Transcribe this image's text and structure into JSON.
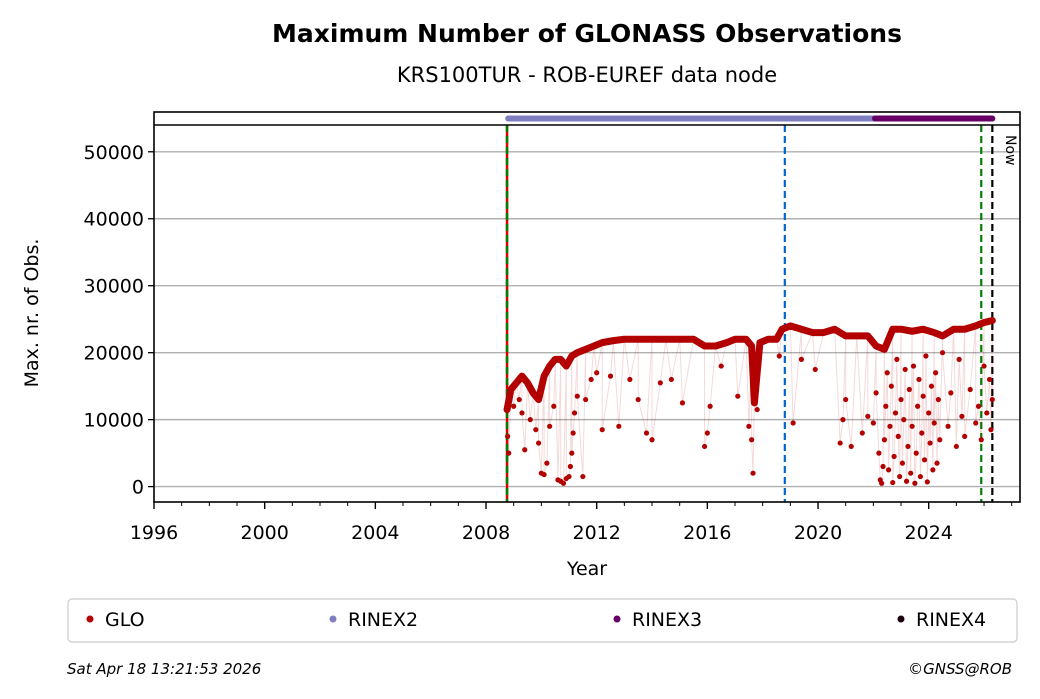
{
  "chart_data": {
    "type": "scatter",
    "title": "Maximum Number of GLONASS Observations",
    "subtitle": "KRS100TUR - ROB-EUREF data node",
    "xlabel": "Year",
    "ylabel": "Max. nr. of Obs.",
    "xlim": [
      1996,
      2027.3
    ],
    "ylim": [
      -2300,
      54000
    ],
    "xticks": [
      1996,
      2000,
      2004,
      2008,
      2012,
      2016,
      2020,
      2024
    ],
    "xtick_labels": [
      "1996",
      "2000",
      "2004",
      "2008",
      "2012",
      "2016",
      "2020",
      "2024"
    ],
    "yticks": [
      0,
      10000,
      20000,
      30000,
      40000,
      50000
    ],
    "ytick_labels": [
      "0",
      "10000",
      "20000",
      "30000",
      "40000",
      "50000"
    ],
    "grid": "horizontal",
    "now_label": "Now",
    "vertical_lines": [
      {
        "x": 2008.76,
        "color": "#008000",
        "style": "dashed-red"
      },
      {
        "x": 2018.8,
        "color": "#0066cc",
        "style": "dashed"
      },
      {
        "x": 2025.9,
        "color": "#008000",
        "style": "dashed"
      },
      {
        "x": 2026.3,
        "color": "#000000",
        "style": "dashed",
        "label": "Now"
      }
    ],
    "format_bars": [
      {
        "name": "RINEX2",
        "from": 2008.8,
        "to": 2022.06,
        "color": "#7f7fbf"
      },
      {
        "name": "RINEX3",
        "from": 2022.06,
        "to": 2026.3,
        "color": "#660066"
      }
    ],
    "series": [
      {
        "name": "GLO",
        "color": "#b30000",
        "baseline": [
          [
            2008.76,
            11500
          ],
          [
            2008.9,
            14500
          ],
          [
            2009.1,
            15500
          ],
          [
            2009.3,
            16500
          ],
          [
            2009.5,
            15500
          ],
          [
            2009.7,
            14000
          ],
          [
            2009.9,
            13000
          ],
          [
            2010.1,
            16500
          ],
          [
            2010.3,
            18000
          ],
          [
            2010.5,
            19000
          ],
          [
            2010.7,
            19000
          ],
          [
            2010.9,
            18000
          ],
          [
            2011.1,
            19500
          ],
          [
            2011.3,
            20000
          ],
          [
            2011.6,
            20500
          ],
          [
            2011.9,
            21000
          ],
          [
            2012.2,
            21500
          ],
          [
            2012.6,
            21800
          ],
          [
            2013.0,
            22000
          ],
          [
            2013.5,
            22000
          ],
          [
            2014.0,
            22000
          ],
          [
            2014.5,
            22000
          ],
          [
            2015.0,
            22000
          ],
          [
            2015.5,
            22000
          ],
          [
            2015.9,
            21000
          ],
          [
            2016.3,
            21000
          ],
          [
            2016.7,
            21500
          ],
          [
            2017.0,
            22000
          ],
          [
            2017.4,
            22000
          ],
          [
            2017.6,
            21000
          ],
          [
            2017.7,
            12500
          ],
          [
            2017.9,
            21500
          ],
          [
            2018.2,
            22000
          ],
          [
            2018.5,
            22000
          ],
          [
            2018.7,
            23500
          ],
          [
            2019.0,
            24000
          ],
          [
            2019.4,
            23500
          ],
          [
            2019.8,
            23000
          ],
          [
            2020.2,
            23000
          ],
          [
            2020.6,
            23500
          ],
          [
            2021.0,
            22500
          ],
          [
            2021.4,
            22500
          ],
          [
            2021.8,
            22500
          ],
          [
            2022.1,
            21000
          ],
          [
            2022.4,
            20500
          ],
          [
            2022.7,
            23500
          ],
          [
            2023.0,
            23500
          ],
          [
            2023.4,
            23200
          ],
          [
            2023.8,
            23500
          ],
          [
            2024.2,
            23000
          ],
          [
            2024.5,
            22500
          ],
          [
            2024.9,
            23500
          ],
          [
            2025.3,
            23500
          ],
          [
            2025.7,
            24000
          ],
          [
            2026.0,
            24500
          ],
          [
            2026.3,
            24800
          ]
        ],
        "outliers": [
          [
            2008.78,
            7500
          ],
          [
            2008.82,
            5000
          ],
          [
            2009.0,
            12000
          ],
          [
            2009.2,
            13000
          ],
          [
            2009.3,
            11000
          ],
          [
            2009.4,
            5500
          ],
          [
            2009.6,
            10000
          ],
          [
            2009.8,
            8500
          ],
          [
            2009.9,
            6500
          ],
          [
            2010.0,
            2000
          ],
          [
            2010.1,
            1800
          ],
          [
            2010.2,
            3500
          ],
          [
            2010.3,
            9000
          ],
          [
            2010.45,
            12000
          ],
          [
            2010.6,
            1000
          ],
          [
            2010.7,
            800
          ],
          [
            2010.8,
            500
          ],
          [
            2010.9,
            1200
          ],
          [
            2011.0,
            1500
          ],
          [
            2011.05,
            3000
          ],
          [
            2011.1,
            5000
          ],
          [
            2011.15,
            8000
          ],
          [
            2011.2,
            11000
          ],
          [
            2011.3,
            13500
          ],
          [
            2011.5,
            1500
          ],
          [
            2011.6,
            13000
          ],
          [
            2011.8,
            16000
          ],
          [
            2012.0,
            17000
          ],
          [
            2012.2,
            8500
          ],
          [
            2012.5,
            16500
          ],
          [
            2012.8,
            9000
          ],
          [
            2013.2,
            16000
          ],
          [
            2013.5,
            13000
          ],
          [
            2013.8,
            8000
          ],
          [
            2014.0,
            7000
          ],
          [
            2014.3,
            15500
          ],
          [
            2014.7,
            16000
          ],
          [
            2015.1,
            12500
          ],
          [
            2015.9,
            6000
          ],
          [
            2016.0,
            8000
          ],
          [
            2016.1,
            12000
          ],
          [
            2016.5,
            18000
          ],
          [
            2017.1,
            13500
          ],
          [
            2017.5,
            9000
          ],
          [
            2017.6,
            7000
          ],
          [
            2017.65,
            2000
          ],
          [
            2017.8,
            11500
          ],
          [
            2018.6,
            19500
          ],
          [
            2019.1,
            9500
          ],
          [
            2019.4,
            19000
          ],
          [
            2019.9,
            17500
          ],
          [
            2020.8,
            6500
          ],
          [
            2020.9,
            10000
          ],
          [
            2021.0,
            13000
          ],
          [
            2021.2,
            6000
          ],
          [
            2021.6,
            8000
          ],
          [
            2021.8,
            10500
          ],
          [
            2022.0,
            9500
          ],
          [
            2022.1,
            14000
          ],
          [
            2022.2,
            5000
          ],
          [
            2022.25,
            1000
          ],
          [
            2022.3,
            500
          ],
          [
            2022.35,
            3000
          ],
          [
            2022.4,
            7000
          ],
          [
            2022.45,
            12000
          ],
          [
            2022.5,
            17000
          ],
          [
            2022.55,
            2500
          ],
          [
            2022.6,
            9000
          ],
          [
            2022.65,
            15000
          ],
          [
            2022.7,
            600
          ],
          [
            2022.75,
            4500
          ],
          [
            2022.8,
            11000
          ],
          [
            2022.85,
            19000
          ],
          [
            2022.9,
            7500
          ],
          [
            2022.95,
            1500
          ],
          [
            2023.0,
            13000
          ],
          [
            2023.05,
            3500
          ],
          [
            2023.1,
            10000
          ],
          [
            2023.15,
            17500
          ],
          [
            2023.2,
            800
          ],
          [
            2023.25,
            6000
          ],
          [
            2023.3,
            14500
          ],
          [
            2023.35,
            2000
          ],
          [
            2023.4,
            9000
          ],
          [
            2023.45,
            18000
          ],
          [
            2023.5,
            500
          ],
          [
            2023.55,
            5000
          ],
          [
            2023.6,
            12000
          ],
          [
            2023.65,
            16000
          ],
          [
            2023.7,
            1500
          ],
          [
            2023.75,
            8000
          ],
          [
            2023.8,
            13500
          ],
          [
            2023.85,
            4000
          ],
          [
            2023.9,
            19500
          ],
          [
            2023.95,
            700
          ],
          [
            2024.0,
            11000
          ],
          [
            2024.05,
            6500
          ],
          [
            2024.1,
            15000
          ],
          [
            2024.15,
            2500
          ],
          [
            2024.2,
            9500
          ],
          [
            2024.25,
            17000
          ],
          [
            2024.3,
            3500
          ],
          [
            2024.35,
            13000
          ],
          [
            2024.4,
            7000
          ],
          [
            2024.5,
            20000
          ],
          [
            2024.7,
            9000
          ],
          [
            2024.8,
            14000
          ],
          [
            2025.0,
            6000
          ],
          [
            2025.1,
            19000
          ],
          [
            2025.2,
            10500
          ],
          [
            2025.3,
            7500
          ],
          [
            2025.5,
            14500
          ],
          [
            2025.7,
            9500
          ],
          [
            2025.8,
            12000
          ],
          [
            2025.9,
            7000
          ],
          [
            2026.0,
            18000
          ],
          [
            2026.1,
            11000
          ],
          [
            2026.2,
            16000
          ],
          [
            2026.25,
            8500
          ],
          [
            2026.3,
            13000
          ]
        ]
      }
    ],
    "legend": {
      "placement": "bottom",
      "entries": [
        {
          "label": "GLO",
          "color": "#b30000"
        },
        {
          "label": "RINEX2",
          "color": "#7f7fbf"
        },
        {
          "label": "RINEX3",
          "color": "#660066"
        },
        {
          "label": "RINEX4",
          "color": "#1a0010"
        }
      ]
    }
  },
  "footer": {
    "timestamp": "Sat Apr 18 13:21:53 2026",
    "copyright": "©GNSS@ROB"
  }
}
